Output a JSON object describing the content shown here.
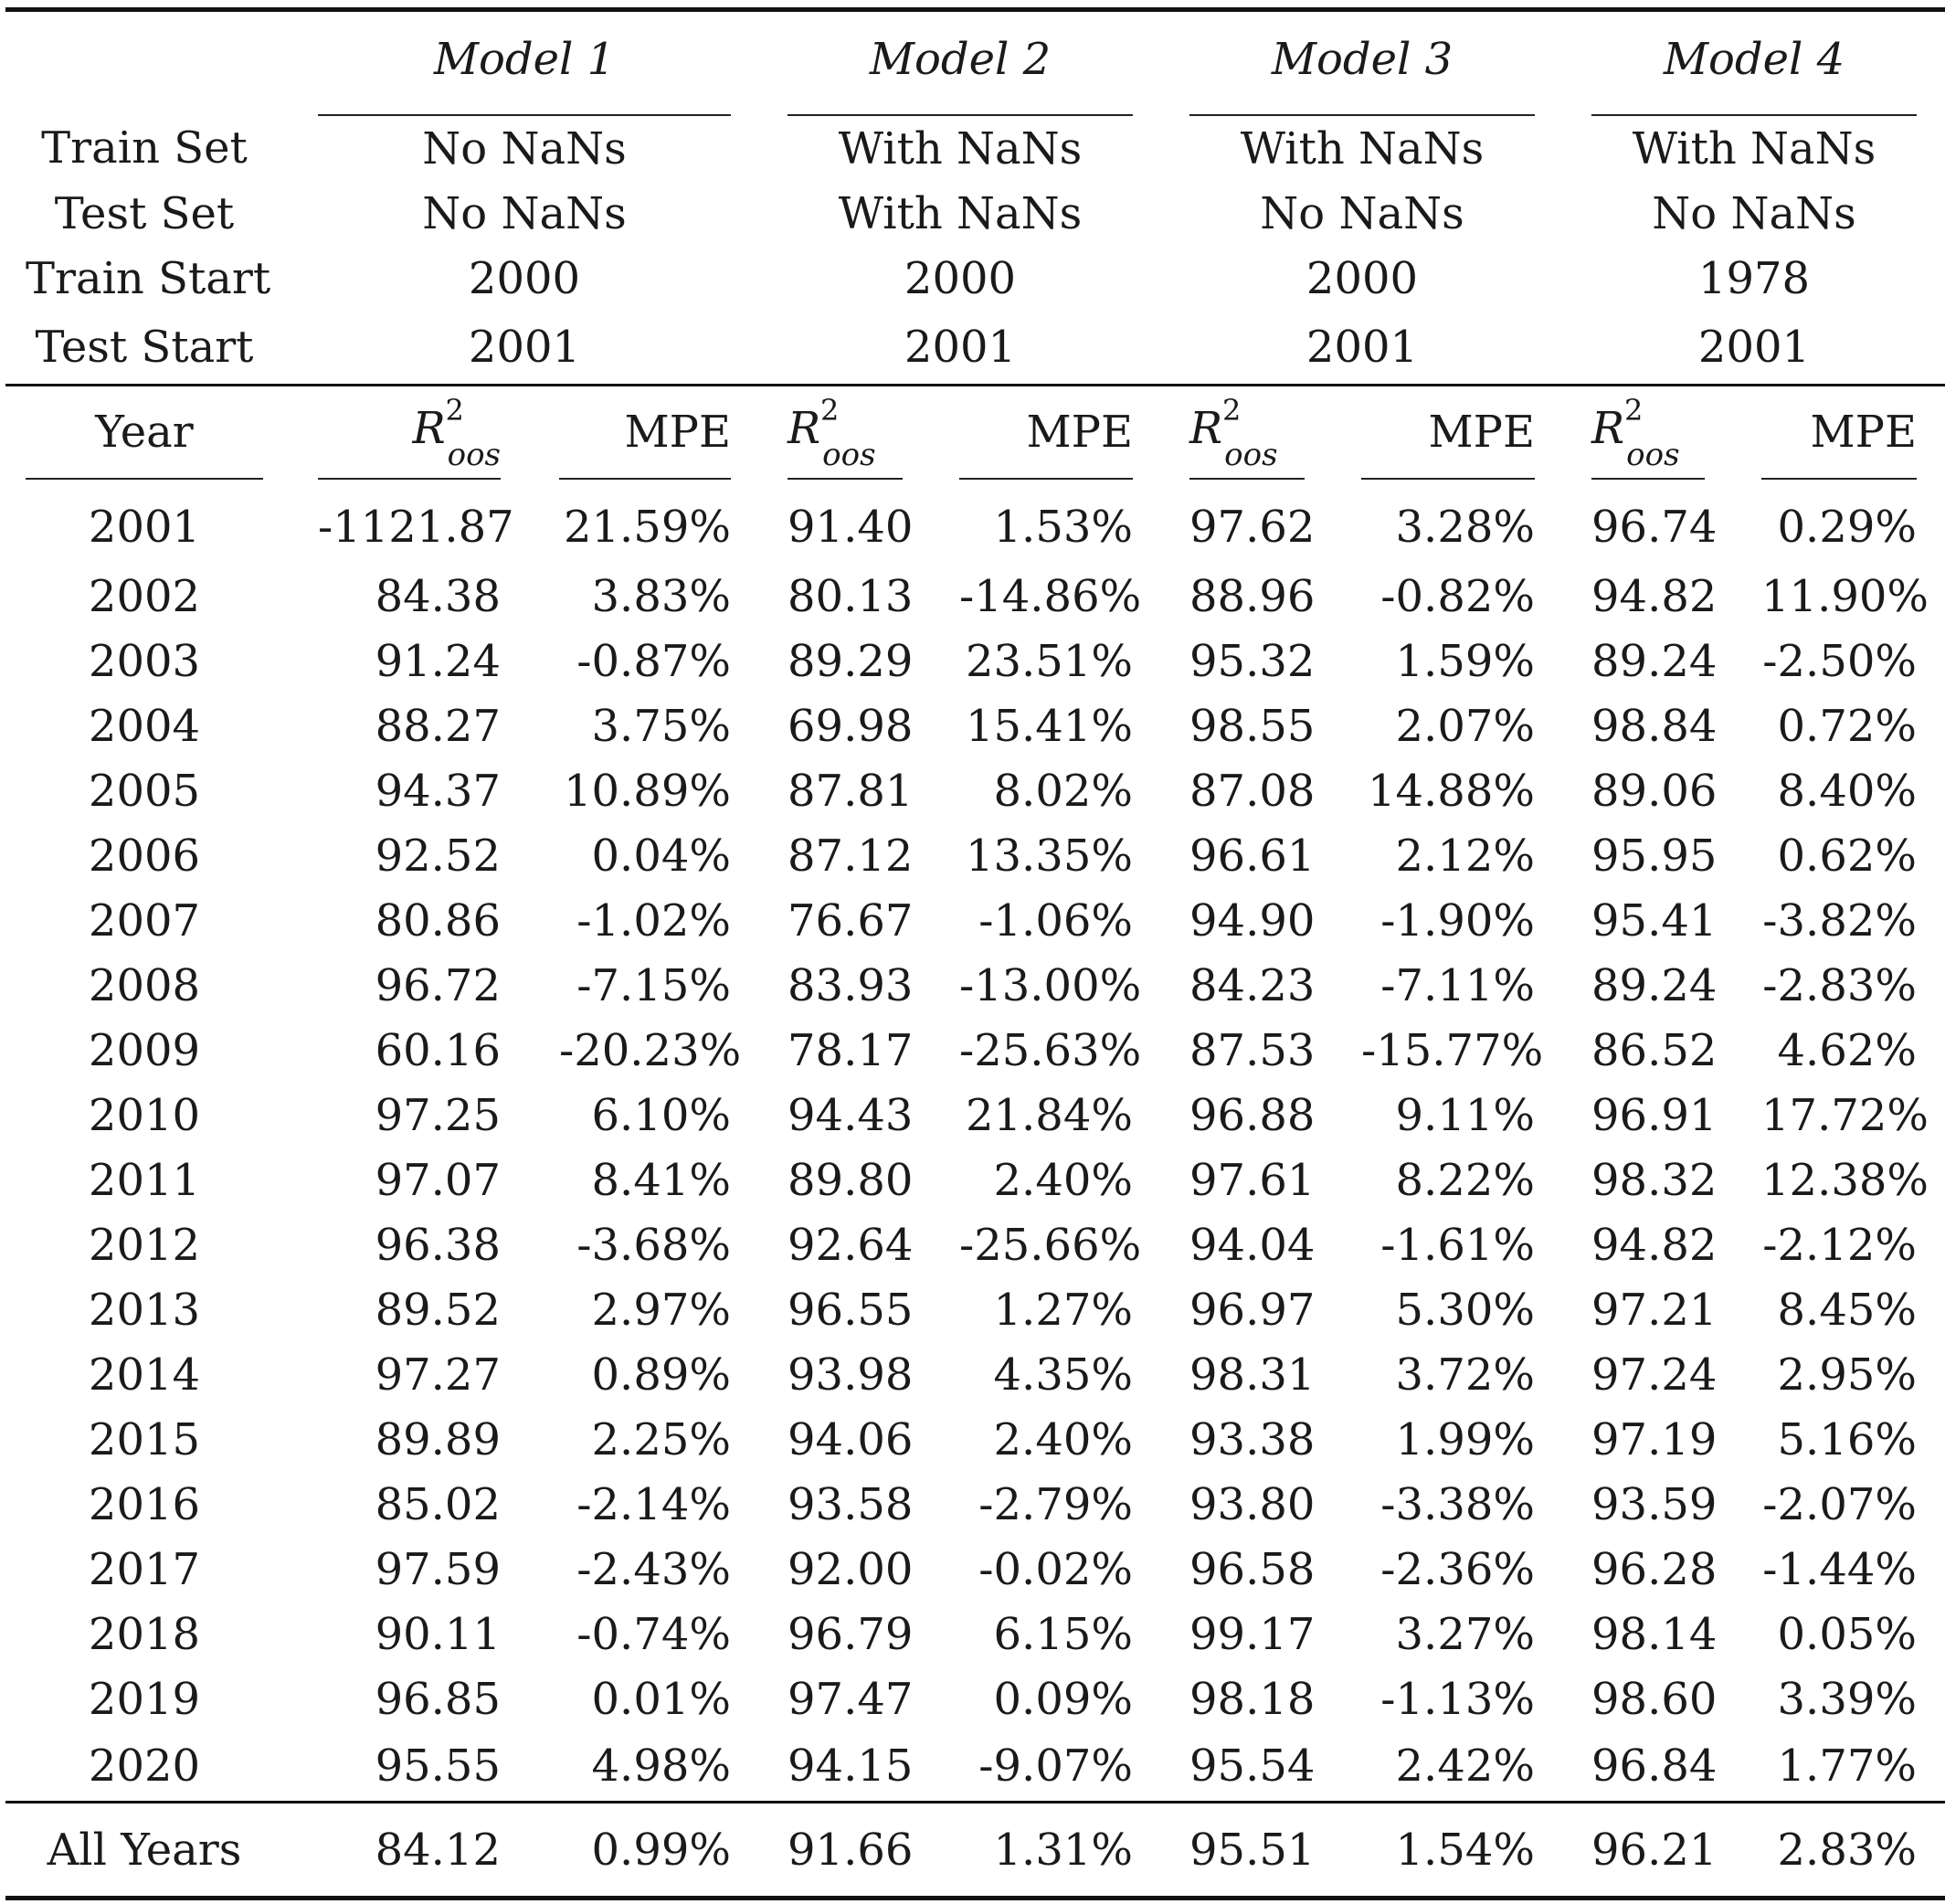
{
  "models": [
    {
      "name": "Model 1",
      "train_set": "No NaNs",
      "test_set": "No NaNs",
      "train_start": "2000",
      "test_start": "2001"
    },
    {
      "name": "Model 2",
      "train_set": "With NaNs",
      "test_set": "With NaNs",
      "train_start": "2000",
      "test_start": "2001"
    },
    {
      "name": "Model 3",
      "train_set": "With NaNs",
      "test_set": "No NaNs",
      "train_start": "2000",
      "test_start": "2001"
    },
    {
      "name": "Model 4",
      "train_set": "With NaNs",
      "test_set": "No NaNs",
      "train_start": "1978",
      "test_start": "2001"
    }
  ],
  "row_labels": {
    "train_set": "Train Set",
    "test_set": "Test Set",
    "train_start": "Train Start",
    "test_start": "Test Start",
    "year": "Year",
    "r2_base": "R",
    "r2_sup": "2",
    "r2_sub": "oos",
    "mpe": "MPE"
  },
  "rows": [
    {
      "year": "2001",
      "values": [
        "-1121.87",
        "21.59%",
        "91.40",
        "1.53%",
        "97.62",
        "3.28%",
        "96.74",
        "0.29%"
      ]
    },
    {
      "year": "2002",
      "values": [
        "84.38",
        "3.83%",
        "80.13",
        "-14.86%",
        "88.96",
        "-0.82%",
        "94.82",
        "11.90%"
      ]
    },
    {
      "year": "2003",
      "values": [
        "91.24",
        "-0.87%",
        "89.29",
        "23.51%",
        "95.32",
        "1.59%",
        "89.24",
        "-2.50%"
      ]
    },
    {
      "year": "2004",
      "values": [
        "88.27",
        "3.75%",
        "69.98",
        "15.41%",
        "98.55",
        "2.07%",
        "98.84",
        "0.72%"
      ]
    },
    {
      "year": "2005",
      "values": [
        "94.37",
        "10.89%",
        "87.81",
        "8.02%",
        "87.08",
        "14.88%",
        "89.06",
        "8.40%"
      ]
    },
    {
      "year": "2006",
      "values": [
        "92.52",
        "0.04%",
        "87.12",
        "13.35%",
        "96.61",
        "2.12%",
        "95.95",
        "0.62%"
      ]
    },
    {
      "year": "2007",
      "values": [
        "80.86",
        "-1.02%",
        "76.67",
        "-1.06%",
        "94.90",
        "-1.90%",
        "95.41",
        "-3.82%"
      ]
    },
    {
      "year": "2008",
      "values": [
        "96.72",
        "-7.15%",
        "83.93",
        "-13.00%",
        "84.23",
        "-7.11%",
        "89.24",
        "-2.83%"
      ]
    },
    {
      "year": "2009",
      "values": [
        "60.16",
        "-20.23%",
        "78.17",
        "-25.63%",
        "87.53",
        "-15.77%",
        "86.52",
        "4.62%"
      ]
    },
    {
      "year": "2010",
      "values": [
        "97.25",
        "6.10%",
        "94.43",
        "21.84%",
        "96.88",
        "9.11%",
        "96.91",
        "17.72%"
      ]
    },
    {
      "year": "2011",
      "values": [
        "97.07",
        "8.41%",
        "89.80",
        "2.40%",
        "97.61",
        "8.22%",
        "98.32",
        "12.38%"
      ]
    },
    {
      "year": "2012",
      "values": [
        "96.38",
        "-3.68%",
        "92.64",
        "-25.66%",
        "94.04",
        "-1.61%",
        "94.82",
        "-2.12%"
      ]
    },
    {
      "year": "2013",
      "values": [
        "89.52",
        "2.97%",
        "96.55",
        "1.27%",
        "96.97",
        "5.30%",
        "97.21",
        "8.45%"
      ]
    },
    {
      "year": "2014",
      "values": [
        "97.27",
        "0.89%",
        "93.98",
        "4.35%",
        "98.31",
        "3.72%",
        "97.24",
        "2.95%"
      ]
    },
    {
      "year": "2015",
      "values": [
        "89.89",
        "2.25%",
        "94.06",
        "2.40%",
        "93.38",
        "1.99%",
        "97.19",
        "5.16%"
      ]
    },
    {
      "year": "2016",
      "values": [
        "85.02",
        "-2.14%",
        "93.58",
        "-2.79%",
        "93.80",
        "-3.38%",
        "93.59",
        "-2.07%"
      ]
    },
    {
      "year": "2017",
      "values": [
        "97.59",
        "-2.43%",
        "92.00",
        "-0.02%",
        "96.58",
        "-2.36%",
        "96.28",
        "-1.44%"
      ]
    },
    {
      "year": "2018",
      "values": [
        "90.11",
        "-0.74%",
        "96.79",
        "6.15%",
        "99.17",
        "3.27%",
        "98.14",
        "0.05%"
      ]
    },
    {
      "year": "2019",
      "values": [
        "96.85",
        "0.01%",
        "97.47",
        "0.09%",
        "98.18",
        "-1.13%",
        "98.60",
        "3.39%"
      ]
    },
    {
      "year": "2020",
      "values": [
        "95.55",
        "4.98%",
        "94.15",
        "-9.07%",
        "95.54",
        "2.42%",
        "96.84",
        "1.77%"
      ]
    }
  ],
  "total": {
    "label": "All Years",
    "values": [
      "84.12",
      "0.99%",
      "91.66",
      "1.31%",
      "95.51",
      "1.54%",
      "96.21",
      "2.83%"
    ]
  }
}
